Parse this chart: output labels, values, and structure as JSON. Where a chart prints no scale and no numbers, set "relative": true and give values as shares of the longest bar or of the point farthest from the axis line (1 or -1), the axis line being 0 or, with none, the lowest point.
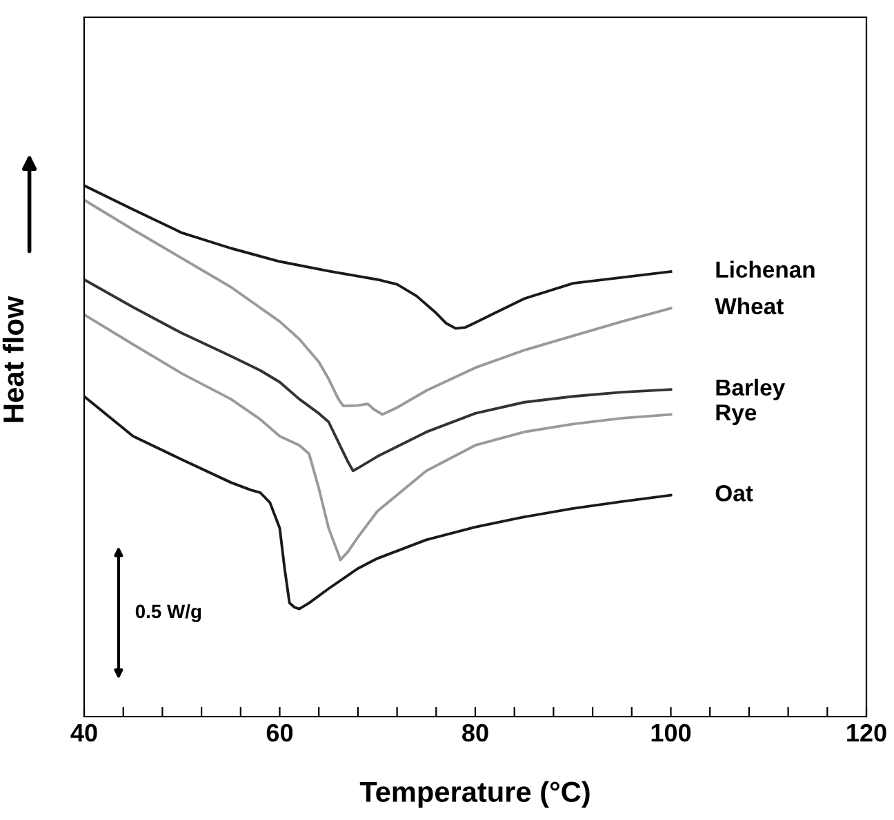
{
  "chart_data": {
    "type": "line",
    "relative": true,
    "xlabel": "Temperature (°C)",
    "ylabel": "Heat flow",
    "xlim": [
      40,
      120
    ],
    "xticks": [
      40,
      {
        "value": 44,
        "label": null
      },
      {
        "value": 48,
        "label": null
      },
      {
        "value": 52,
        "label": null
      },
      {
        "value": 56,
        "label": null
      },
      60,
      {
        "value": 64,
        "label": null
      },
      {
        "value": 68,
        "label": null
      },
      {
        "value": 72,
        "label": null
      },
      {
        "value": 76,
        "label": null
      },
      80,
      {
        "value": 84,
        "label": null
      },
      {
        "value": 88,
        "label": null
      },
      {
        "value": 92,
        "label": null
      },
      {
        "value": 96,
        "label": null
      },
      100,
      {
        "value": 104,
        "label": null
      },
      {
        "value": 108,
        "label": null
      },
      {
        "value": 112,
        "label": null
      },
      {
        "value": 116,
        "label": null
      },
      120
    ],
    "tick_labels": "x",
    "grid": false,
    "legend": false,
    "marker": "none",
    "line_style": "solid",
    "annotations": [
      "0.5 W/g"
    ],
    "series": [
      {
        "name": "Lichenan",
        "color": "#1a1a1a",
        "x": [
          40,
          45,
          50,
          55,
          60,
          65,
          70,
          72,
          74,
          76,
          77,
          78,
          79,
          80,
          82,
          85,
          90,
          95,
          100
        ],
        "values": [
          1.0,
          0.955,
          0.911,
          0.882,
          0.857,
          0.839,
          0.823,
          0.814,
          0.792,
          0.76,
          0.741,
          0.731,
          0.733,
          0.742,
          0.76,
          0.787,
          0.816,
          0.827,
          0.838
        ]
      },
      {
        "name": "Wheat",
        "color": "#9a9a9a",
        "x": [
          40,
          45,
          50,
          55,
          60,
          62,
          64,
          65,
          66,
          66.5,
          68,
          69,
          69.6,
          70.5,
          72,
          75,
          80,
          85,
          90,
          95,
          100
        ],
        "values": [
          0.973,
          0.917,
          0.863,
          0.809,
          0.744,
          0.711,
          0.668,
          0.636,
          0.598,
          0.585,
          0.586,
          0.589,
          0.579,
          0.569,
          0.582,
          0.614,
          0.657,
          0.69,
          0.717,
          0.744,
          0.769
        ]
      },
      {
        "name": "Barley",
        "color": "#333333",
        "x": [
          40,
          45,
          50,
          55,
          58,
          60,
          62,
          64,
          65,
          66,
          67,
          67.5,
          68,
          70,
          75,
          80,
          85,
          90,
          95,
          100
        ],
        "values": [
          0.823,
          0.771,
          0.722,
          0.679,
          0.652,
          0.63,
          0.598,
          0.571,
          0.555,
          0.517,
          0.479,
          0.463,
          0.468,
          0.49,
          0.536,
          0.571,
          0.592,
          0.603,
          0.611,
          0.616
        ]
      },
      {
        "name": "Rye",
        "color": "#9a9a9a",
        "x": [
          40,
          45,
          50,
          55,
          58,
          60,
          62,
          63,
          64,
          65,
          66,
          66.2,
          67,
          68,
          70,
          75,
          80,
          85,
          90,
          95,
          100
        ],
        "values": [
          0.757,
          0.701,
          0.646,
          0.598,
          0.56,
          0.528,
          0.511,
          0.495,
          0.43,
          0.355,
          0.306,
          0.295,
          0.311,
          0.338,
          0.387,
          0.463,
          0.511,
          0.536,
          0.551,
          0.562,
          0.569
        ]
      },
      {
        "name": "Oat",
        "color": "#1a1a1a",
        "x": [
          40,
          45,
          50,
          55,
          57,
          58,
          59,
          60,
          60.5,
          61,
          61.5,
          62,
          63,
          65,
          68,
          70,
          75,
          80,
          85,
          90,
          95,
          100
        ],
        "values": [
          0.603,
          0.528,
          0.484,
          0.441,
          0.427,
          0.422,
          0.403,
          0.355,
          0.279,
          0.214,
          0.206,
          0.203,
          0.214,
          0.241,
          0.279,
          0.298,
          0.333,
          0.357,
          0.376,
          0.392,
          0.405,
          0.417
        ]
      }
    ]
  }
}
